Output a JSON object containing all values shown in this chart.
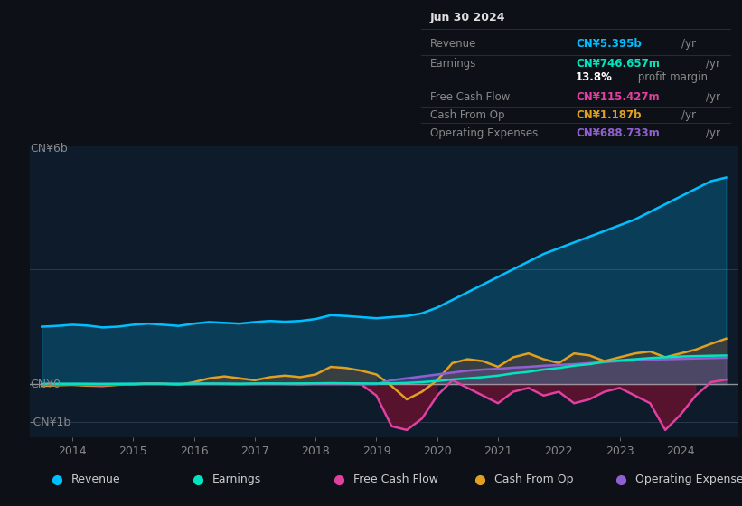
{
  "background_color": "#0d1117",
  "plot_bg_color": "#0d1b2a",
  "ylabel_top": "CN¥6b",
  "ylabel_zero": "CN¥0",
  "ylabel_bottom": "-CN¥1b",
  "ylim_min": -1400000000,
  "ylim_max": 6200000000,
  "xlim_min": 2013.3,
  "xlim_max": 2024.95,
  "grid_color": "#2a3a4a",
  "zero_line_color": "#aaaaaa",
  "yticks": [
    6000000000,
    3000000000,
    0,
    -1000000000
  ],
  "xticks": [
    2014,
    2015,
    2016,
    2017,
    2018,
    2019,
    2020,
    2021,
    2022,
    2023,
    2024
  ],
  "colors": {
    "revenue": "#00bfff",
    "earnings": "#00e5c0",
    "free_cash_flow": "#e040a0",
    "cash_from_op": "#e0a020",
    "operating_expenses": "#9060d0"
  },
  "legend": [
    {
      "label": "Revenue",
      "color": "#00bfff"
    },
    {
      "label": "Earnings",
      "color": "#00e5c0"
    },
    {
      "label": "Free Cash Flow",
      "color": "#e040a0"
    },
    {
      "label": "Cash From Op",
      "color": "#e0a020"
    },
    {
      "label": "Operating Expenses",
      "color": "#9060d0"
    }
  ],
  "tooltip_title": "Jun 30 2024",
  "tooltip_rows": [
    {
      "label": "Revenue",
      "value": "CN¥5.395b",
      "unit": "/yr",
      "color": "#00bfff"
    },
    {
      "label": "Earnings",
      "value": "CN¥746.657m",
      "unit": "/yr",
      "color": "#00e5c0"
    },
    {
      "label": "",
      "value": "13.8%",
      "unit": " profit margin",
      "color": "#ffffff"
    },
    {
      "label": "Free Cash Flow",
      "value": "CN¥115.427m",
      "unit": "/yr",
      "color": "#e040a0"
    },
    {
      "label": "Cash From Op",
      "value": "CN¥1.187b",
      "unit": "/yr",
      "color": "#e0a020"
    },
    {
      "label": "Operating Expenses",
      "value": "CN¥688.733m",
      "unit": "/yr",
      "color": "#9060d0"
    }
  ],
  "x": [
    2013.5,
    2013.75,
    2014.0,
    2014.25,
    2014.5,
    2014.75,
    2015.0,
    2015.25,
    2015.5,
    2015.75,
    2016.0,
    2016.25,
    2016.5,
    2016.75,
    2017.0,
    2017.25,
    2017.5,
    2017.75,
    2018.0,
    2018.25,
    2018.5,
    2018.75,
    2019.0,
    2019.25,
    2019.5,
    2019.75,
    2020.0,
    2020.25,
    2020.5,
    2020.75,
    2021.0,
    2021.25,
    2021.5,
    2021.75,
    2022.0,
    2022.25,
    2022.5,
    2022.75,
    2023.0,
    2023.25,
    2023.5,
    2023.75,
    2024.0,
    2024.25,
    2024.5,
    2024.75
  ],
  "revenue": [
    1500000000.0,
    1520000000.0,
    1550000000.0,
    1530000000.0,
    1480000000.0,
    1500000000.0,
    1550000000.0,
    1580000000.0,
    1550000000.0,
    1520000000.0,
    1580000000.0,
    1620000000.0,
    1600000000.0,
    1580000000.0,
    1620000000.0,
    1650000000.0,
    1630000000.0,
    1650000000.0,
    1700000000.0,
    1800000000.0,
    1780000000.0,
    1750000000.0,
    1720000000.0,
    1750000000.0,
    1780000000.0,
    1850000000.0,
    2000000000.0,
    2200000000.0,
    2400000000.0,
    2600000000.0,
    2800000000.0,
    3000000000.0,
    3200000000.0,
    3400000000.0,
    3550000000.0,
    3700000000.0,
    3850000000.0,
    4000000000.0,
    4150000000.0,
    4300000000.0,
    4500000000.0,
    4700000000.0,
    4900000000.0,
    5100000000.0,
    5300000000.0,
    5395000000.0
  ],
  "earnings": [
    5000000.0,
    8000000.0,
    10000000.0,
    8000000.0,
    5000000.0,
    8000000.0,
    10000000.0,
    12000000.0,
    10000000.0,
    8000000.0,
    12000000.0,
    15000000.0,
    13000000.0,
    10000000.0,
    15000000.0,
    18000000.0,
    15000000.0,
    18000000.0,
    20000000.0,
    25000000.0,
    20000000.0,
    18000000.0,
    15000000.0,
    20000000.0,
    30000000.0,
    50000000.0,
    80000000.0,
    120000000.0,
    150000000.0,
    180000000.0,
    220000000.0,
    280000000.0,
    320000000.0,
    380000000.0,
    420000000.0,
    480000000.0,
    520000000.0,
    580000000.0,
    620000000.0,
    650000000.0,
    680000000.0,
    700000000.0,
    720000000.0,
    730000000.0,
    740000000.0,
    746700000.0
  ],
  "free_cash_flow": [
    -20000000.0,
    -10000000.0,
    -5000000.0,
    -20000000.0,
    -30000000.0,
    -10000000.0,
    -5000000.0,
    10000000.0,
    5000000.0,
    -10000000.0,
    5000000.0,
    10000000.0,
    5000000.0,
    -5000000.0,
    5000000.0,
    10000000.0,
    5000000.0,
    -5000000.0,
    10000000.0,
    20000000.0,
    10000000.0,
    -5000000.0,
    -300000000.0,
    -1100000000.0,
    -1200000000.0,
    -900000000.0,
    -300000000.0,
    100000000.0,
    -100000000.0,
    -300000000.0,
    -500000000.0,
    -200000000.0,
    -100000000.0,
    -300000000.0,
    -200000000.0,
    -500000000.0,
    -400000000.0,
    -200000000.0,
    -100000000.0,
    -300000000.0,
    -500000000.0,
    -1200000000.0,
    -800000000.0,
    -300000000.0,
    50000000.0,
    115400000.0
  ],
  "cash_from_op": [
    -50000000.0,
    -30000000.0,
    -20000000.0,
    -40000000.0,
    -50000000.0,
    -20000000.0,
    -10000000.0,
    20000000.0,
    10000000.0,
    -20000000.0,
    50000000.0,
    150000000.0,
    200000000.0,
    150000000.0,
    100000000.0,
    180000000.0,
    220000000.0,
    180000000.0,
    250000000.0,
    450000000.0,
    420000000.0,
    350000000.0,
    250000000.0,
    -50000000.0,
    -400000000.0,
    -200000000.0,
    100000000.0,
    550000000.0,
    650000000.0,
    600000000.0,
    450000000.0,
    700000000.0,
    800000000.0,
    650000000.0,
    550000000.0,
    800000000.0,
    750000000.0,
    600000000.0,
    700000000.0,
    800000000.0,
    850000000.0,
    700000000.0,
    800000000.0,
    900000000.0,
    1050000000.0,
    1187000000.0
  ],
  "operating_expenses": [
    0.0,
    0.0,
    0.0,
    0.0,
    0.0,
    0.0,
    0.0,
    0.0,
    0.0,
    0.0,
    0.0,
    0.0,
    0.0,
    0.0,
    0.0,
    0.0,
    0.0,
    0.0,
    0.0,
    0.0,
    0.0,
    0.0,
    0.0,
    100000000.0,
    150000000.0,
    200000000.0,
    250000000.0,
    300000000.0,
    350000000.0,
    380000000.0,
    400000000.0,
    430000000.0,
    450000000.0,
    480000000.0,
    500000000.0,
    520000000.0,
    550000000.0,
    580000000.0,
    600000000.0,
    620000000.0,
    640000000.0,
    650000000.0,
    660000000.0,
    670000000.0,
    680000000.0,
    688700000.0
  ]
}
